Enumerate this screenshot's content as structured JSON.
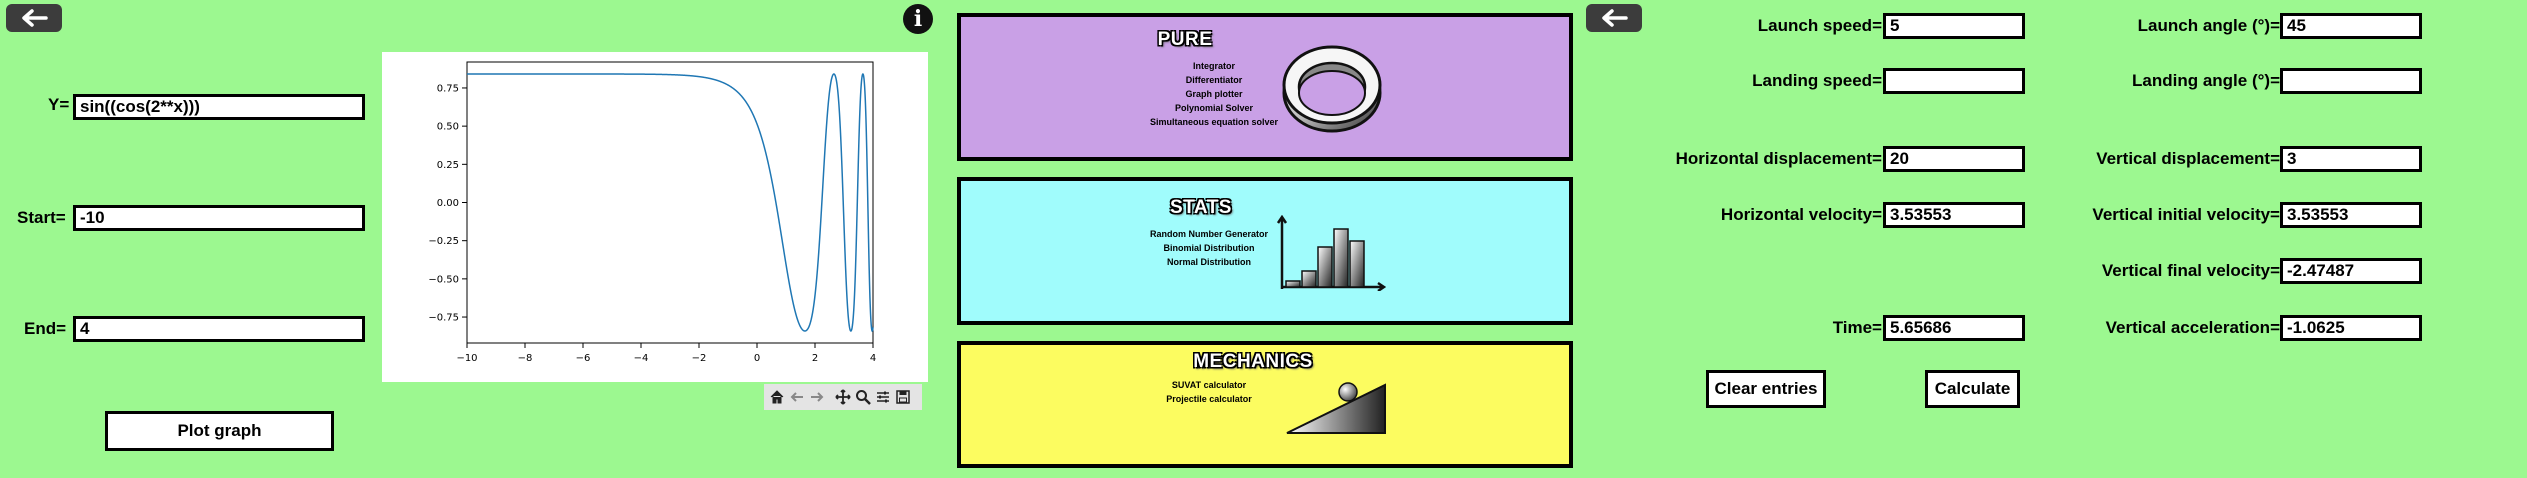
{
  "calculus": {
    "y_label": "Y=",
    "y_value": "sin((cos(2**x)))",
    "start_label": "Start=",
    "start_value": "-10",
    "end_label": "End=",
    "end_value": "4",
    "plot_button": "Plot graph"
  },
  "plot": {
    "function": "sin(cos(2**x))",
    "x_range": [
      -10,
      4
    ],
    "y_range": [
      -0.92,
      0.92
    ],
    "x_ticks": [
      "−10",
      "−8",
      "−6",
      "−4",
      "−2",
      "0",
      "2",
      "4"
    ],
    "y_ticks": [
      "0.75",
      "0.50",
      "0.25",
      "0.00",
      "−0.25",
      "−0.50",
      "−0.75"
    ],
    "line_color": "#1f77b4"
  },
  "toolbar": {
    "icons": [
      "home-icon",
      "back-arrow-icon",
      "forward-arrow-icon",
      "pan-icon",
      "zoom-icon",
      "configure-icon",
      "save-icon"
    ]
  },
  "cards": {
    "pure": {
      "title": "PURE",
      "items": [
        "Integrator",
        "Differentiator",
        "Graph plotter",
        "Polynomial Solver",
        "Simultaneous equation solver"
      ],
      "color": "#c9a0e6"
    },
    "stats": {
      "title": "STATS",
      "items": [
        "Random Number Generator",
        "Binomial Distribution",
        "Normal Distribution"
      ],
      "color": "#a0fcfc"
    },
    "mechanics": {
      "title": "MECHANICS",
      "items": [
        "SUVAT calculator",
        "Projectile calculator"
      ],
      "color": "#fcfc60"
    }
  },
  "projectile": {
    "launch_speed_label": "Launch speed=",
    "launch_speed": "5",
    "launch_angle_label": "Launch angle (°)=",
    "launch_angle": "45",
    "landing_speed_label": "Landing speed=",
    "landing_speed": "",
    "landing_angle_label": "Landing angle (°)=",
    "landing_angle": "",
    "h_disp_label": "Horizontal displacement=",
    "h_disp": "20",
    "v_disp_label": "Vertical displacement=",
    "v_disp": "3",
    "h_vel_label": "Horizontal velocity=",
    "h_vel": "3.53553",
    "v_init_label": "Vertical initial velocity=",
    "v_init": "3.53553",
    "v_final_label": "Vertical final velocity=",
    "v_final": "-2.47487",
    "time_label": "Time=",
    "time": "5.65686",
    "v_acc_label": "Vertical acceleration=",
    "v_acc": "-1.0625",
    "clear_button": "Clear entries",
    "calculate_button": "Calculate"
  }
}
